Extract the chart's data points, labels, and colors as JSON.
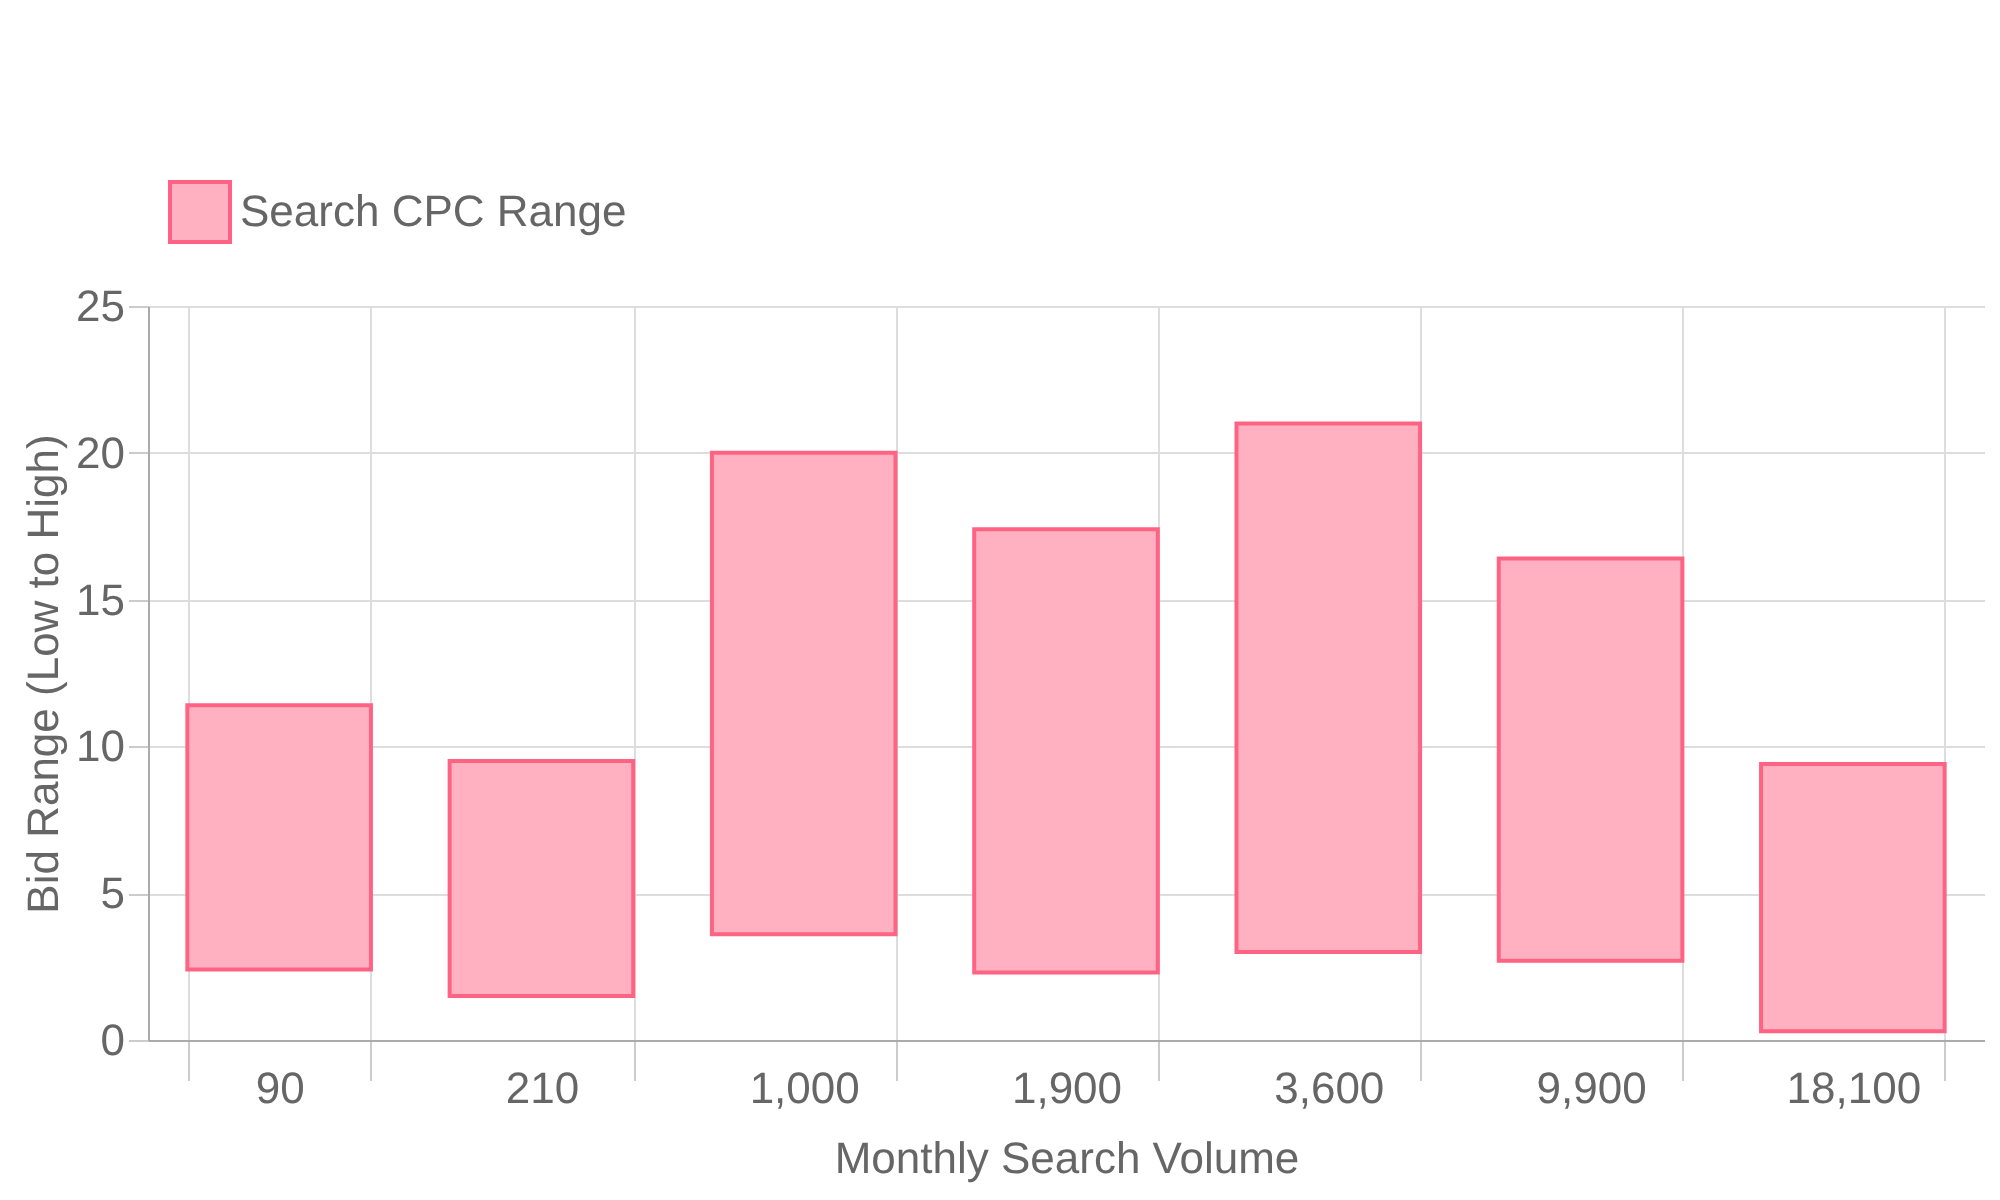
{
  "chart_data": {
    "type": "bar",
    "xlabel": "Monthly Search Volume",
    "ylabel": "Bid Range (Low to High)",
    "categories": [
      "90",
      "210",
      "1,000",
      "1,900",
      "3,600",
      "9,900",
      "18,100"
    ],
    "series": [
      {
        "name": "Search CPC Range",
        "color": "#ffb1c1",
        "base": [
          2.4,
          1.5,
          3.6,
          2.3,
          3.0,
          2.7,
          0.3
        ],
        "values": [
          9.0,
          8.0,
          16.4,
          15.1,
          18.0,
          13.7,
          9.1
        ]
      }
    ],
    "ylim": [
      0,
      25
    ],
    "yticks": [
      0,
      5,
      10,
      15,
      20,
      25
    ],
    "grid": true,
    "legend": "top"
  }
}
